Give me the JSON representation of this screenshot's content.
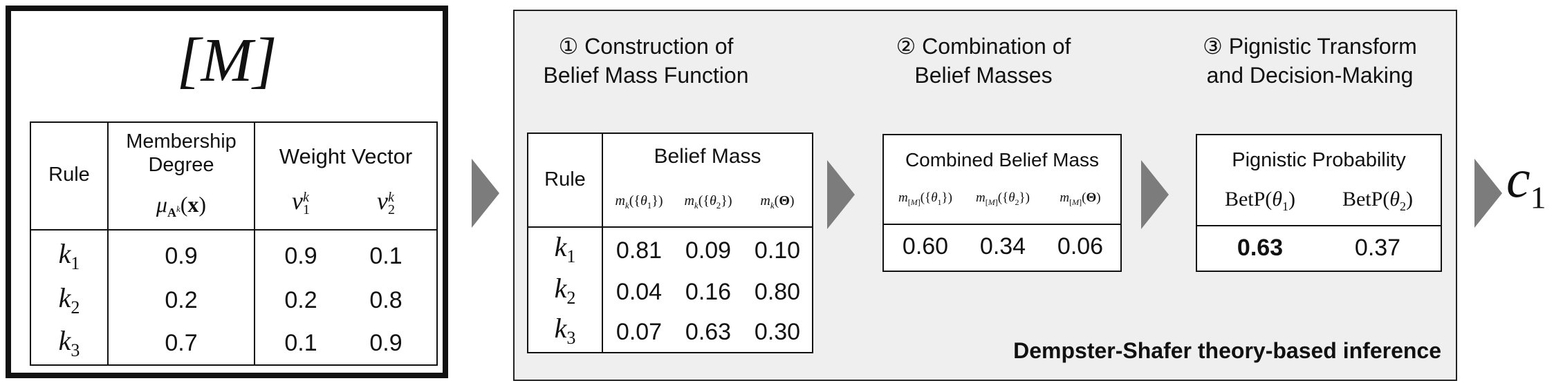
{
  "model": {
    "title": "[M]",
    "table": {
      "col_rule": "Rule",
      "col_membership_line1": "Membership",
      "col_membership_line2": "Degree",
      "col_weight": "Weight Vector",
      "rows": [
        {
          "rule": "k",
          "sub": "1",
          "mu": "0.9",
          "v1": "0.9",
          "v2": "0.1"
        },
        {
          "rule": "k",
          "sub": "2",
          "mu": "0.2",
          "v1": "0.2",
          "v2": "0.8"
        },
        {
          "rule": "k",
          "sub": "3",
          "mu": "0.7",
          "v1": "0.1",
          "v2": "0.9"
        }
      ]
    }
  },
  "ds": {
    "footer": "Dempster-Shafer theory-based inference",
    "stage1": {
      "title_line1": "① Construction of",
      "title_line2": "Belief Mass Function",
      "col_rule": "Rule",
      "col_group": "Belief Mass",
      "rows": [
        {
          "rule": "k",
          "sub": "1",
          "a": "0.81",
          "b": "0.09",
          "c": "0.10"
        },
        {
          "rule": "k",
          "sub": "2",
          "a": "0.04",
          "b": "0.16",
          "c": "0.80"
        },
        {
          "rule": "k",
          "sub": "3",
          "a": "0.07",
          "b": "0.63",
          "c": "0.30"
        }
      ]
    },
    "stage2": {
      "title_line1": "② Combination of",
      "title_line2": "Belief Masses",
      "col_group": "Combined Belief Mass",
      "values": [
        "0.60",
        "0.34",
        "0.06"
      ]
    },
    "stage3": {
      "title_line1": "③ Pignistic Transform",
      "title_line2": "and Decision-Making",
      "col_group": "Pignistic Probability",
      "values": [
        "0.63",
        "0.37"
      ]
    }
  },
  "output": {
    "label": "c",
    "sub": "1"
  },
  "colors": {
    "panel_bg": "#efefef",
    "arrow": "#7c7c7c",
    "border": "#111111"
  }
}
